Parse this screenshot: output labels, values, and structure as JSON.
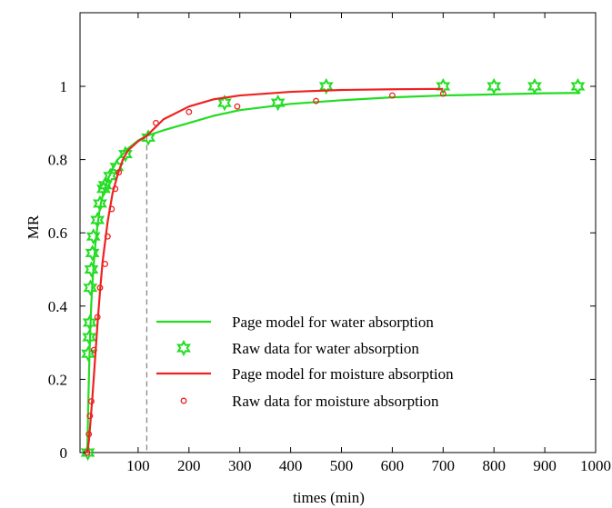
{
  "chart_data": {
    "type": "scatter",
    "title": "",
    "xlabel": "times (min)",
    "ylabel": "MR",
    "xlim": [
      0,
      1000
    ],
    "ylim": [
      0,
      1.0
    ],
    "x_ticks": [
      100,
      200,
      300,
      400,
      500,
      600,
      700,
      800,
      900,
      1000
    ],
    "y_ticks": [
      0,
      0.2,
      0.4,
      0.6,
      0.8,
      1
    ],
    "x_tick_labels": [
      "100",
      "200",
      "300",
      "400",
      "500",
      "600",
      "700",
      "800",
      "900",
      "1000"
    ],
    "y_tick_labels": [
      "0",
      "0.2",
      "0.4",
      "0.6",
      "0.8",
      "1"
    ],
    "grid": false,
    "legend_position": "lower-right",
    "reference_line": {
      "x": 117,
      "style": "dashed",
      "color": "#888888"
    },
    "series": [
      {
        "name": "Page model for water absorption",
        "kind": "line",
        "color": "#22dd22",
        "points": [
          [
            0,
            0
          ],
          [
            2,
            0.14
          ],
          [
            4,
            0.25
          ],
          [
            6,
            0.34
          ],
          [
            8,
            0.41
          ],
          [
            10,
            0.46
          ],
          [
            13,
            0.52
          ],
          [
            16,
            0.57
          ],
          [
            20,
            0.62
          ],
          [
            25,
            0.67
          ],
          [
            30,
            0.7
          ],
          [
            40,
            0.745
          ],
          [
            50,
            0.775
          ],
          [
            60,
            0.8
          ],
          [
            70,
            0.815
          ],
          [
            80,
            0.83
          ],
          [
            100,
            0.852
          ],
          [
            117,
            0.865
          ],
          [
            150,
            0.88
          ],
          [
            200,
            0.9
          ],
          [
            250,
            0.92
          ],
          [
            300,
            0.935
          ],
          [
            400,
            0.952
          ],
          [
            500,
            0.962
          ],
          [
            600,
            0.97
          ],
          [
            700,
            0.975
          ],
          [
            800,
            0.978
          ],
          [
            900,
            0.981
          ],
          [
            970,
            0.982
          ]
        ]
      },
      {
        "name": "Raw data for water absorption",
        "kind": "marker",
        "marker": "star6",
        "color": "#22dd22",
        "points": [
          [
            1,
            0
          ],
          [
            2,
            0.27
          ],
          [
            4,
            0.315
          ],
          [
            5,
            0.355
          ],
          [
            6,
            0.45
          ],
          [
            8,
            0.5
          ],
          [
            10,
            0.545
          ],
          [
            12,
            0.59
          ],
          [
            20,
            0.635
          ],
          [
            25,
            0.68
          ],
          [
            32,
            0.72
          ],
          [
            35,
            0.73
          ],
          [
            45,
            0.755
          ],
          [
            58,
            0.78
          ],
          [
            75,
            0.815
          ],
          [
            120,
            0.86
          ],
          [
            270,
            0.955
          ],
          [
            375,
            0.955
          ],
          [
            470,
            1.0
          ],
          [
            700,
            1.0
          ],
          [
            800,
            1.0
          ],
          [
            880,
            1.0
          ],
          [
            965,
            1.0
          ]
        ]
      },
      {
        "name": "Page model for moisture absorption",
        "kind": "line",
        "color": "#ee2222",
        "points": [
          [
            0,
            0
          ],
          [
            3,
            0.03
          ],
          [
            6,
            0.08
          ],
          [
            10,
            0.15
          ],
          [
            15,
            0.25
          ],
          [
            20,
            0.35
          ],
          [
            25,
            0.44
          ],
          [
            30,
            0.52
          ],
          [
            40,
            0.63
          ],
          [
            50,
            0.71
          ],
          [
            60,
            0.76
          ],
          [
            70,
            0.8
          ],
          [
            80,
            0.825
          ],
          [
            100,
            0.85
          ],
          [
            117,
            0.865
          ],
          [
            150,
            0.91
          ],
          [
            200,
            0.945
          ],
          [
            250,
            0.965
          ],
          [
            300,
            0.975
          ],
          [
            400,
            0.985
          ],
          [
            500,
            0.99
          ],
          [
            600,
            0.992
          ],
          [
            700,
            0.993
          ]
        ]
      },
      {
        "name": "Raw data for moisture absorption",
        "kind": "marker",
        "marker": "circle",
        "color": "#ee2222",
        "points": [
          [
            0,
            0
          ],
          [
            3,
            0.05
          ],
          [
            5,
            0.1
          ],
          [
            8,
            0.14
          ],
          [
            13,
            0.28
          ],
          [
            20,
            0.37
          ],
          [
            25,
            0.45
          ],
          [
            35,
            0.515
          ],
          [
            40,
            0.59
          ],
          [
            48,
            0.665
          ],
          [
            55,
            0.72
          ],
          [
            62,
            0.765
          ],
          [
            135,
            0.9
          ],
          [
            200,
            0.93
          ],
          [
            295,
            0.945
          ],
          [
            450,
            0.96
          ],
          [
            600,
            0.975
          ],
          [
            700,
            0.98
          ]
        ]
      }
    ]
  }
}
